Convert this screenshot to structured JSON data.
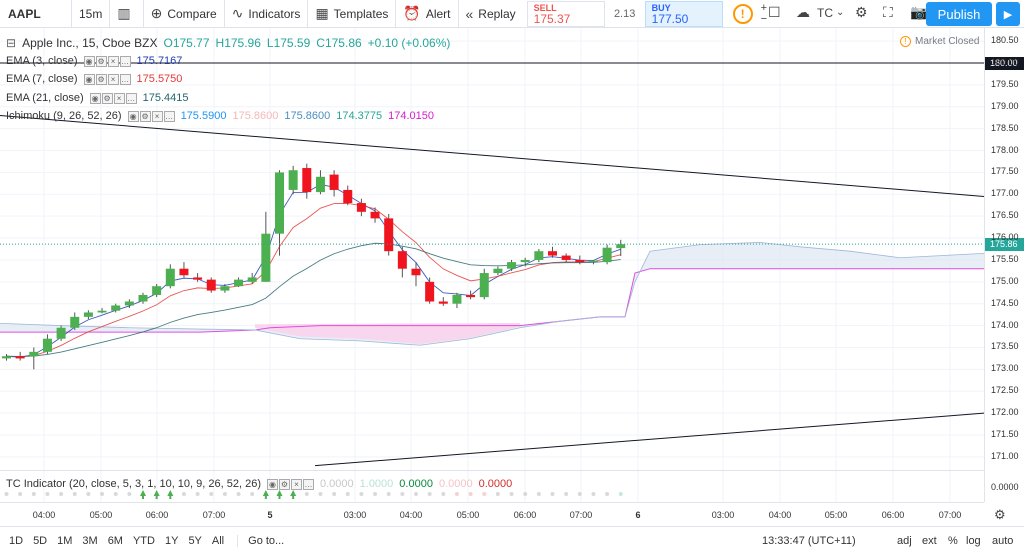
{
  "toolbar": {
    "symbol": "AAPL",
    "interval": "15m",
    "compare": "Compare",
    "indicators": "Indicators",
    "templates": "Templates",
    "alert": "Alert",
    "replay": "Replay",
    "sell_label": "SELL",
    "sell_price": "175.37",
    "spread": "2.13",
    "buy_label": "BUY",
    "buy_price": "177.50",
    "warning": "!",
    "plus": "+",
    "minus": "−",
    "tc": "TC",
    "publish": "Publish"
  },
  "legend": {
    "title": "Apple Inc., 15, Cboe BZX",
    "ohlc": {
      "o": "O175.77",
      "h": "H175.96",
      "l": "L175.59",
      "c": "C175.86",
      "change": "+0.10 (+0.06%)"
    },
    "ema3": {
      "name": "EMA (3, close)",
      "value": "175.7167",
      "color": "#1e3cb4"
    },
    "ema7": {
      "name": "EMA (7, close)",
      "value": "175.5750",
      "color": "#e53935"
    },
    "ema21": {
      "name": "EMA (21, close)",
      "value": "175.4415",
      "color": "#26666b"
    },
    "ichimoku": {
      "name": "Ichimoku (9, 26, 52, 26)",
      "values": [
        {
          "v": "175.5900",
          "color": "#2196f3"
        },
        {
          "v": "175.8600",
          "color": "#f4b8b8"
        },
        {
          "v": "175.8600",
          "color": "#4a8fc0"
        },
        {
          "v": "174.3775",
          "color": "#26a69a"
        },
        {
          "v": "174.0150",
          "color": "#d81bd0"
        }
      ]
    },
    "market_status": "Market Closed",
    "tc_indicator": {
      "name": "TC Indicator (20, close, 5, 3, 1, 10, 10, 9, 26, 52, 26)",
      "values": [
        {
          "v": "0.0000",
          "color": "#c8c8c8"
        },
        {
          "v": "1.0000",
          "color": "#b9e4d3"
        },
        {
          "v": "0.0000",
          "color": "#0a8a3a"
        },
        {
          "v": "0.0000",
          "color": "#f4c6c6"
        },
        {
          "v": "0.0000",
          "color": "#d32f2f"
        }
      ]
    }
  },
  "price_axis": {
    "ticks": [
      "180.50",
      "180.00",
      "179.50",
      "179.00",
      "178.50",
      "178.00",
      "177.50",
      "177.00",
      "176.50",
      "176.00",
      "175.50",
      "175.00",
      "174.50",
      "174.00",
      "173.50",
      "173.00",
      "172.50",
      "172.00",
      "171.50",
      "171.00"
    ],
    "tag_180": "180.00",
    "tag_current": "175.86",
    "sub_tick": "0.0000"
  },
  "time_axis": {
    "labels": [
      "04:00",
      "05:00",
      "06:00",
      "07:00",
      "5",
      "03:00",
      "04:00",
      "05:00",
      "06:00",
      "07:00",
      "6",
      "03:00",
      "04:00",
      "05:00",
      "06:00",
      "07:00"
    ]
  },
  "bottombar": {
    "ranges": [
      "1D",
      "5D",
      "1M",
      "3M",
      "6M",
      "YTD",
      "1Y",
      "5Y",
      "All"
    ],
    "goto": "Go to...",
    "clock": "13:33:47 (UTC+11)",
    "adj": "adj",
    "ext": "ext",
    "pct": "%",
    "log": "log",
    "auto": "auto"
  },
  "chart_data": {
    "type": "candlestick",
    "symbol": "AAPL",
    "interval": "15",
    "y_range": [
      170.7,
      180.8
    ],
    "candles": [
      {
        "o": 173.25,
        "h": 173.35,
        "l": 173.2,
        "c": 173.3
      },
      {
        "o": 173.3,
        "h": 173.4,
        "l": 173.2,
        "c": 173.25
      },
      {
        "o": 173.3,
        "h": 173.5,
        "l": 173.0,
        "c": 173.4
      },
      {
        "o": 173.4,
        "h": 173.8,
        "l": 173.35,
        "c": 173.7
      },
      {
        "o": 173.7,
        "h": 174.0,
        "l": 173.65,
        "c": 173.95
      },
      {
        "o": 173.95,
        "h": 174.3,
        "l": 173.9,
        "c": 174.2
      },
      {
        "o": 174.2,
        "h": 174.35,
        "l": 174.15,
        "c": 174.3
      },
      {
        "o": 174.3,
        "h": 174.4,
        "l": 174.28,
        "c": 174.34
      },
      {
        "o": 174.34,
        "h": 174.5,
        "l": 174.3,
        "c": 174.46
      },
      {
        "o": 174.46,
        "h": 174.6,
        "l": 174.4,
        "c": 174.55
      },
      {
        "o": 174.55,
        "h": 174.75,
        "l": 174.5,
        "c": 174.7
      },
      {
        "o": 174.7,
        "h": 174.95,
        "l": 174.65,
        "c": 174.9
      },
      {
        "o": 174.9,
        "h": 175.4,
        "l": 174.85,
        "c": 175.3
      },
      {
        "o": 175.3,
        "h": 175.45,
        "l": 175.1,
        "c": 175.15
      },
      {
        "o": 175.1,
        "h": 175.2,
        "l": 175.0,
        "c": 175.05
      },
      {
        "o": 175.05,
        "h": 175.1,
        "l": 174.75,
        "c": 174.8
      },
      {
        "o": 174.8,
        "h": 174.95,
        "l": 174.75,
        "c": 174.9
      },
      {
        "o": 174.9,
        "h": 175.1,
        "l": 174.88,
        "c": 175.05
      },
      {
        "o": 175.0,
        "h": 175.2,
        "l": 174.95,
        "c": 175.1
      },
      {
        "o": 175.0,
        "h": 176.6,
        "l": 175.0,
        "c": 176.1
      },
      {
        "o": 176.1,
        "h": 177.55,
        "l": 175.6,
        "c": 177.5
      },
      {
        "o": 177.1,
        "h": 177.65,
        "l": 177.0,
        "c": 177.55
      },
      {
        "o": 177.6,
        "h": 177.7,
        "l": 176.9,
        "c": 177.05
      },
      {
        "o": 177.05,
        "h": 177.55,
        "l": 177.0,
        "c": 177.4
      },
      {
        "o": 177.45,
        "h": 177.55,
        "l": 176.95,
        "c": 177.1
      },
      {
        "o": 177.1,
        "h": 177.2,
        "l": 176.75,
        "c": 176.8
      },
      {
        "o": 176.8,
        "h": 176.9,
        "l": 176.5,
        "c": 176.6
      },
      {
        "o": 176.6,
        "h": 176.7,
        "l": 176.35,
        "c": 176.45
      },
      {
        "o": 176.45,
        "h": 176.55,
        "l": 175.6,
        "c": 175.7
      },
      {
        "o": 175.7,
        "h": 175.8,
        "l": 175.1,
        "c": 175.3
      },
      {
        "o": 175.3,
        "h": 175.45,
        "l": 174.9,
        "c": 175.15
      },
      {
        "o": 175.0,
        "h": 175.1,
        "l": 174.5,
        "c": 174.55
      },
      {
        "o": 174.55,
        "h": 174.65,
        "l": 174.45,
        "c": 174.5
      },
      {
        "o": 174.5,
        "h": 174.75,
        "l": 174.4,
        "c": 174.7
      },
      {
        "o": 174.7,
        "h": 174.8,
        "l": 174.6,
        "c": 174.65
      },
      {
        "o": 174.65,
        "h": 175.3,
        "l": 174.6,
        "c": 175.2
      },
      {
        "o": 175.2,
        "h": 175.35,
        "l": 175.15,
        "c": 175.3
      },
      {
        "o": 175.3,
        "h": 175.5,
        "l": 175.25,
        "c": 175.45
      },
      {
        "o": 175.45,
        "h": 175.55,
        "l": 175.35,
        "c": 175.5
      },
      {
        "o": 175.5,
        "h": 175.75,
        "l": 175.45,
        "c": 175.7
      },
      {
        "o": 175.7,
        "h": 175.8,
        "l": 175.55,
        "c": 175.6
      },
      {
        "o": 175.6,
        "h": 175.65,
        "l": 175.45,
        "c": 175.5
      },
      {
        "o": 175.5,
        "h": 175.6,
        "l": 175.4,
        "c": 175.45
      },
      {
        "o": 175.45,
        "h": 175.5,
        "l": 175.4,
        "c": 175.48
      },
      {
        "o": 175.45,
        "h": 175.85,
        "l": 175.4,
        "c": 175.78
      },
      {
        "o": 175.77,
        "h": 175.96,
        "l": 175.59,
        "c": 175.86
      }
    ],
    "current_price": 175.86,
    "horizontal_level": 180.0,
    "trendlines": [
      {
        "from": [
          0,
          178.8
        ],
        "to": [
          984,
          176.95
        ]
      },
      {
        "from": [
          315,
          170.8
        ],
        "to": [
          984,
          172.0
        ]
      }
    ]
  }
}
